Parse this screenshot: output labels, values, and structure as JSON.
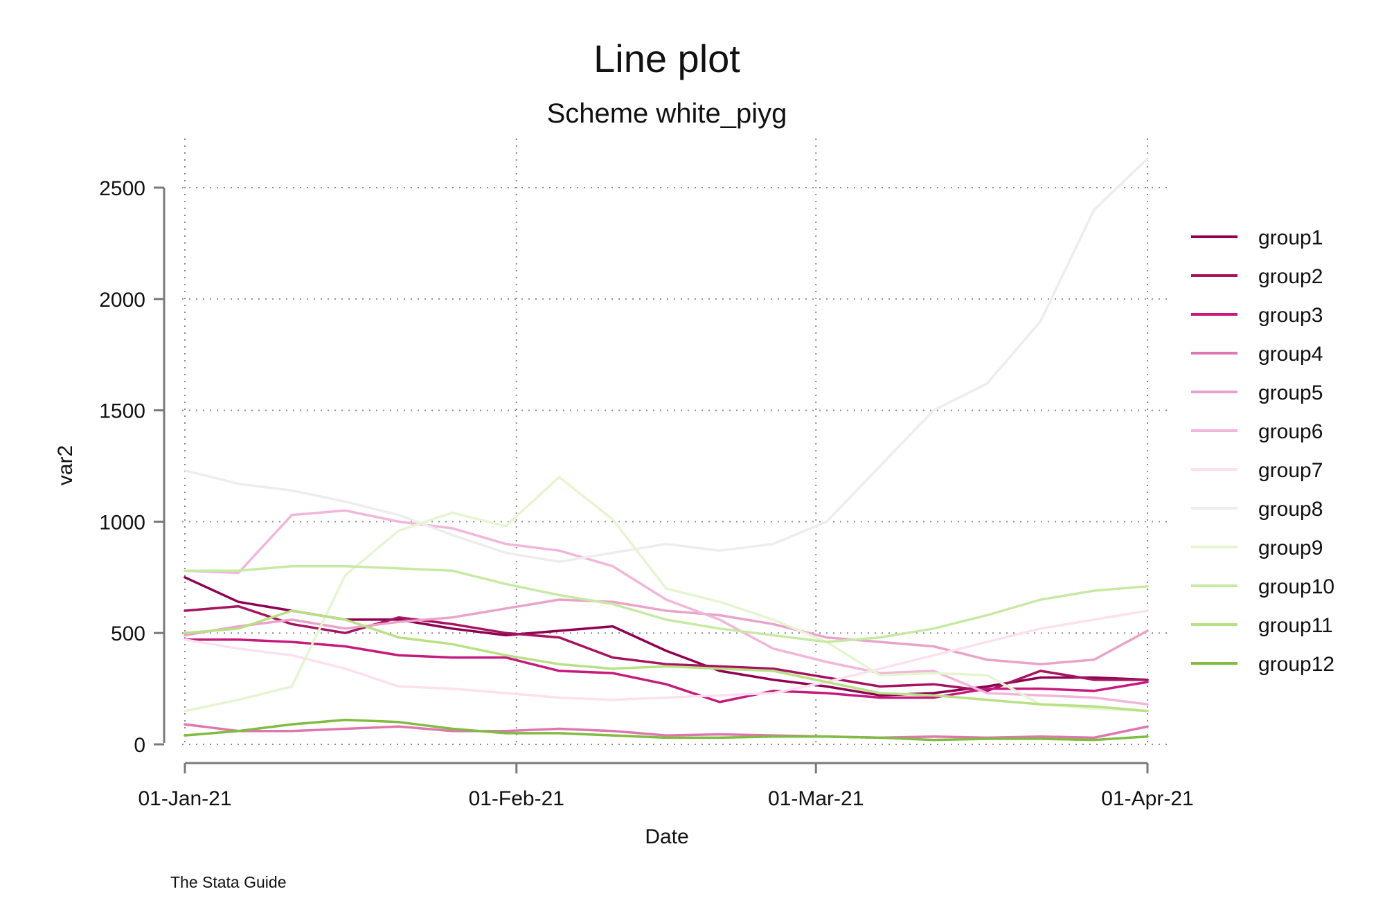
{
  "chart_data": {
    "type": "line",
    "title": "Line plot",
    "subtitle": "Scheme white_piyg",
    "xlabel": "Date",
    "ylabel": "var2",
    "note": "The Stata Guide",
    "xlim": [
      0,
      90
    ],
    "ylim": [
      0,
      2500
    ],
    "grid": true,
    "legend_position": "right",
    "x_ticks": [
      {
        "value": 0,
        "label": "01-Jan-21"
      },
      {
        "value": 31,
        "label": "01-Feb-21"
      },
      {
        "value": 59,
        "label": "01-Mar-21"
      },
      {
        "value": 90,
        "label": "01-Apr-21"
      }
    ],
    "y_ticks": [
      {
        "value": 0,
        "label": "0"
      },
      {
        "value": 500,
        "label": "500"
      },
      {
        "value": 1000,
        "label": "1000"
      },
      {
        "value": 1500,
        "label": "1500"
      },
      {
        "value": 2000,
        "label": "2000"
      },
      {
        "value": 2500,
        "label": "2500"
      }
    ],
    "x_days": [
      0,
      5,
      10,
      15,
      20,
      25,
      30,
      35,
      40,
      45,
      50,
      55,
      60,
      65,
      70,
      75,
      80,
      85,
      90
    ],
    "series": [
      {
        "name": "group1",
        "color": "#8e0152",
        "values": [
          750,
          640,
          600,
          560,
          560,
          520,
          490,
          510,
          530,
          420,
          330,
          290,
          260,
          220,
          230,
          260,
          300,
          300,
          290
        ]
      },
      {
        "name": "group2",
        "color": "#a5145f",
        "values": [
          600,
          620,
          540,
          500,
          570,
          540,
          500,
          480,
          390,
          360,
          350,
          340,
          300,
          260,
          270,
          240,
          330,
          290,
          290
        ]
      },
      {
        "name": "group3",
        "color": "#c51b7d",
        "values": [
          470,
          470,
          460,
          440,
          400,
          390,
          390,
          330,
          320,
          270,
          190,
          240,
          230,
          210,
          210,
          250,
          250,
          240,
          280
        ]
      },
      {
        "name": "group4",
        "color": "#de77ae",
        "values": [
          90,
          60,
          60,
          70,
          80,
          60,
          60,
          70,
          60,
          40,
          45,
          40,
          35,
          30,
          35,
          30,
          35,
          30,
          80
        ]
      },
      {
        "name": "group5",
        "color": "#e9a3c9",
        "values": [
          490,
          530,
          560,
          520,
          550,
          570,
          610,
          650,
          640,
          600,
          580,
          540,
          480,
          460,
          440,
          380,
          360,
          380,
          510
        ]
      },
      {
        "name": "group6",
        "color": "#f1b6da",
        "values": [
          780,
          770,
          1030,
          1050,
          1000,
          970,
          900,
          870,
          800,
          650,
          560,
          430,
          370,
          320,
          330,
          230,
          220,
          210,
          180
        ]
      },
      {
        "name": "group7",
        "color": "#fde0ef",
        "values": [
          470,
          430,
          400,
          340,
          260,
          250,
          230,
          210,
          200,
          210,
          220,
          230,
          280,
          340,
          400,
          460,
          520,
          560,
          600
        ]
      },
      {
        "name": "group8",
        "color": "#f7f7f7",
        "values": [
          1230,
          1170,
          1140,
          1090,
          1030,
          940,
          860,
          820,
          860,
          900,
          870,
          900,
          1000,
          1250,
          1500,
          1620,
          1900,
          2400,
          2630
        ]
      },
      {
        "name": "group9",
        "color": "#e6f5d0",
        "values": [
          150,
          200,
          260,
          760,
          960,
          1040,
          980,
          1200,
          1010,
          700,
          640,
          560,
          460,
          310,
          320,
          310,
          180,
          160,
          150
        ]
      },
      {
        "name": "group10",
        "color": "#c8e9a4",
        "values": [
          780,
          780,
          800,
          800,
          790,
          780,
          720,
          670,
          630,
          560,
          520,
          490,
          460,
          480,
          520,
          580,
          650,
          690,
          710
        ]
      },
      {
        "name": "group11",
        "color": "#b8e186",
        "values": [
          500,
          520,
          600,
          560,
          480,
          450,
          400,
          360,
          340,
          350,
          340,
          330,
          280,
          230,
          220,
          200,
          180,
          170,
          150
        ]
      },
      {
        "name": "group12",
        "color": "#7fbc41",
        "values": [
          40,
          60,
          90,
          110,
          100,
          70,
          50,
          50,
          40,
          30,
          30,
          35,
          35,
          30,
          20,
          25,
          25,
          20,
          35
        ]
      }
    ]
  }
}
